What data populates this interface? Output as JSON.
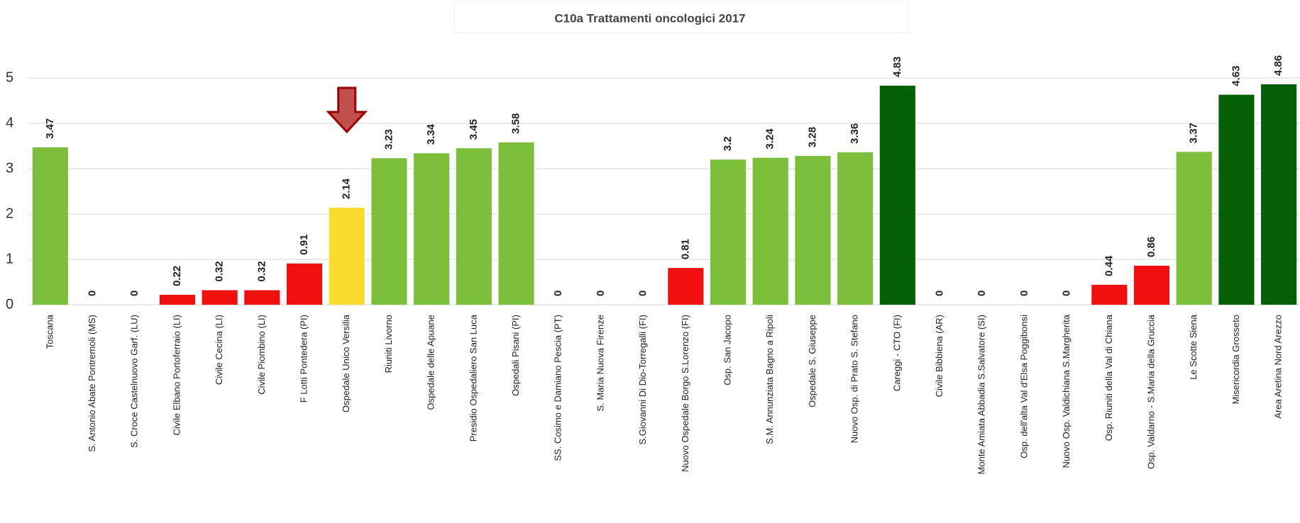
{
  "chart_data": {
    "type": "bar",
    "title": "C10a Trattamenti oncologici 2017",
    "categories": [
      "Toscana",
      "S. Antonio Abate Pontremoli (MS)",
      "S. Croce Castelnuovo Garf. (LU)",
      "Civile Elbano Portoferraio (LI)",
      "Civile Cecina (LI)",
      "Civile Piombino (LI)",
      "F Lotti Pontedera (PI)",
      "Ospedale Unico Versilia",
      "Riuniti Livorno",
      "Ospedale delle Apuane",
      "Presidio Ospedaliero San Luca",
      "Ospedali Pisani (PI)",
      "SS. Cosimo e Damiano Pescia (PT)",
      "S. Maria Nuova Firenze",
      "S.Giovanni Di Dio-Torregalli (FI)",
      "Nuovo Ospedale Borgo S.Lorenzo (FI)",
      "Osp. San Jacopo",
      "S.M. Annunziata Bagno a Ripoli",
      "Ospedale S. Giuseppe",
      "Nuovo Osp. di Prato S. Stefano",
      "Careggi - CTO (FI)",
      "Civile Bibbiena (AR)",
      "Monte Amiata Abbadia S.Salvatore (SI)",
      "Osp. dell'alta Val d'Elsa Poggibonsi",
      "Nuovo Osp. Valdichiana S.Margherita",
      "Osp. Riuniti della Val di Chiana",
      "Osp. Valdarno - S.Maria della Gruccia",
      "Le Scotte Siena",
      "Misericordia Grosseto",
      "Area Aretina Nord Arezzo"
    ],
    "values": [
      3.47,
      0,
      0,
      0.22,
      0.32,
      0.32,
      0.91,
      2.14,
      3.23,
      3.34,
      3.45,
      3.58,
      0,
      0,
      0,
      0.81,
      3.2,
      3.24,
      3.28,
      3.36,
      4.83,
      0,
      0,
      0,
      0,
      0.44,
      0.86,
      3.37,
      4.63,
      4.86
    ],
    "colors": [
      "#7cbf3b",
      "#7cbf3b",
      "#7cbf3b",
      "#f01010",
      "#f01010",
      "#f01010",
      "#f01010",
      "#fbdc2e",
      "#7cbf3b",
      "#7cbf3b",
      "#7cbf3b",
      "#7cbf3b",
      "#7cbf3b",
      "#7cbf3b",
      "#7cbf3b",
      "#f01010",
      "#7cbf3b",
      "#7cbf3b",
      "#7cbf3b",
      "#7cbf3b",
      "#056005",
      "#7cbf3b",
      "#7cbf3b",
      "#7cbf3b",
      "#7cbf3b",
      "#f01010",
      "#f01010",
      "#7cbf3b",
      "#056005",
      "#056005"
    ],
    "ylim": [
      0,
      6
    ],
    "yticks": [
      0,
      1,
      2,
      3,
      4,
      5
    ],
    "grid": true
  }
}
